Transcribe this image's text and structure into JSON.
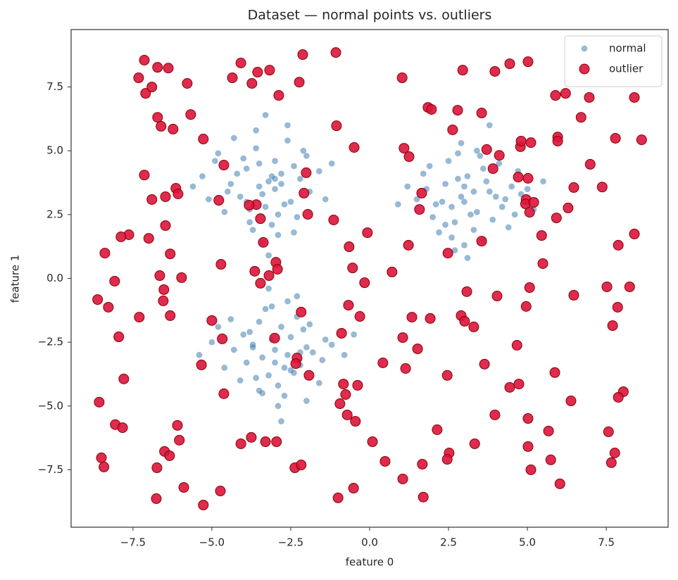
{
  "chart_data": {
    "type": "scatter",
    "title": "Dataset — normal points vs. outliers",
    "x_label": "feature 0",
    "y_label": "feature 1",
    "xlim": [
      -9.46,
      9.46
    ],
    "ylim": [
      -9.75,
      9.75
    ],
    "xticks": [
      {
        "value": -7.5,
        "label": "−7.5"
      },
      {
        "value": -5,
        "label": "−5.0"
      },
      {
        "value": -2.5,
        "label": "−2.5"
      },
      {
        "value": 0,
        "label": "0.0"
      },
      2.5,
      {
        "value": 5,
        "label": "5.0"
      },
      7.5
    ],
    "yticks": [
      {
        "value": -7.5,
        "label": "−7.5"
      },
      {
        "value": -5,
        "label": "−5.0"
      },
      {
        "value": -2.5,
        "label": "−2.5"
      },
      {
        "value": 0,
        "label": "0.0"
      },
      2.5,
      {
        "value": 5,
        "label": "5.0"
      },
      7.5
    ],
    "grid": false,
    "legend": "upper right",
    "series": [
      {
        "name": "normal",
        "color": "#4682b4",
        "x": [
          -3.5,
          -2.8,
          -4.1,
          -3.0,
          -2.5,
          -3.9,
          -3.3,
          -2.2,
          -4.4,
          -3.6,
          -2.9,
          -3.1,
          -4.8,
          -1.9,
          -3.4,
          -2.6,
          -3.8,
          -4.0,
          -2.4,
          -3.2,
          -5.1,
          -1.6,
          -3.7,
          -2.7,
          -4.3,
          -3.0,
          -2.1,
          -3.5,
          -4.6,
          -2.9,
          -3.3,
          -1.4,
          -5.3,
          -3.9,
          -2.3,
          -3.6,
          -4.2,
          -2.8,
          -3.1,
          -2.0,
          -5.6,
          -1.2,
          -3.4,
          -4.5,
          -2.6,
          -3.8,
          -3.0,
          -2.4,
          -4.9,
          -3.2,
          2.9,
          3.4,
          2.4,
          3.8,
          2.1,
          3.1,
          4.2,
          2.7,
          3.6,
          1.8,
          3.0,
          4.5,
          2.5,
          3.3,
          2.0,
          3.9,
          2.8,
          4.8,
          1.5,
          3.5,
          2.6,
          4.1,
          3.2,
          1.2,
          4.4,
          2.3,
          3.7,
          5.2,
          2.9,
          3.0,
          1.7,
          4.0,
          2.2,
          3.4,
          4.7,
          2.6,
          3.1,
          0.9,
          5.0,
          3.6,
          2.8,
          4.3,
          1.9,
          3.3,
          2.4,
          3.8,
          5.5,
          2.7,
          3.0,
          4.6,
          -3.0,
          -2.5,
          -3.4,
          -2.2,
          -3.7,
          -2.8,
          -2.0,
          -3.2,
          -4.0,
          -2.6,
          -3.5,
          -1.8,
          -2.9,
          -3.9,
          -2.3,
          -4.3,
          -1.5,
          -3.1,
          -2.7,
          -3.6,
          -2.1,
          -4.6,
          -1.2,
          -3.3,
          -2.4,
          -3.8,
          -2.9,
          -1.9,
          -4.1,
          -2.6,
          -3.0,
          -5.0,
          -0.8,
          -3.5,
          -2.2,
          -3.2,
          -4.4,
          -1.6,
          -2.8,
          -3.7,
          -2.5,
          -5.4,
          -0.5,
          -3.1,
          -2.0,
          -4.8,
          -2.7,
          -1.4,
          -3.4,
          -2.3
        ],
        "y": [
          3.6,
          4.1,
          3.2,
          4.6,
          3.0,
          4.3,
          2.8,
          3.9,
          3.7,
          5.1,
          2.5,
          4.0,
          4.9,
          3.4,
          3.3,
          5.4,
          2.2,
          4.7,
          4.4,
          3.8,
          3.1,
          4.2,
          1.9,
          2.9,
          5.5,
          3.5,
          5.0,
          4.5,
          2.6,
          1.7,
          6.4,
          3.1,
          4.0,
          3.0,
          2.4,
          5.8,
          4.1,
          3.7,
          2.1,
          4.8,
          3.6,
          4.5,
          1.4,
          3.4,
          6.0,
          2.7,
          3.9,
          1.8,
          4.6,
          0.9,
          3.2,
          2.6,
          3.7,
          3.4,
          2.9,
          4.0,
          2.8,
          2.2,
          4.3,
          3.5,
          3.0,
          3.6,
          4.6,
          1.9,
          2.4,
          2.3,
          3.9,
          3.3,
          3.1,
          4.8,
          1.6,
          4.5,
          2.5,
          3.6,
          2.0,
          3.0,
          3.8,
          2.7,
          5.3,
          1.3,
          4.1,
          3.2,
          1.8,
          5.0,
          4.2,
          2.8,
          0.8,
          2.9,
          3.5,
          1.5,
          4.9,
          3.1,
          4.4,
          3.4,
          2.1,
          6.0,
          3.8,
          1.1,
          3.6,
          2.5,
          -2.8,
          -2.3,
          -3.1,
          -3.4,
          -2.6,
          -1.9,
          -2.7,
          -3.8,
          -2.2,
          -3.0,
          -1.7,
          -2.9,
          -4.2,
          -3.3,
          -1.5,
          -2.8,
          -3.2,
          -2.4,
          -4.6,
          -3.9,
          -2.0,
          -3.5,
          -2.6,
          -1.2,
          -3.7,
          -2.1,
          -5.0,
          -1.8,
          -4.0,
          -0.9,
          -3.3,
          -2.5,
          -3.0,
          -4.4,
          -2.9,
          -0.4,
          -1.6,
          -4.1,
          -5.6,
          -2.7,
          -3.6,
          -3.0,
          -2.2,
          -1.1,
          -4.8,
          -1.9,
          -3.5,
          -2.4,
          -4.5,
          -0.7
        ]
      },
      {
        "name": "outlier",
        "color": "#dc143c",
        "edgecolor": "#8b0000",
        "x": [
          -7.14,
          -7.32,
          -7.1,
          -6.9,
          -6.72,
          -6.38,
          -5.78,
          -5.67,
          -6.72,
          -6.61,
          -6.23,
          -5.27,
          -7.14,
          -4.62,
          -6.14,
          -6.07,
          -6.47,
          -6.9,
          -4.78,
          -6.47,
          -7.63,
          -7.88,
          -7.0,
          -8.39,
          -6.32,
          -6.65,
          -5.96,
          -8.08,
          -6.52,
          -8.62,
          -6.54,
          -8.28,
          -6.32,
          -7.3,
          -7.95,
          -7.79,
          -8.57,
          -8.06,
          -7.83,
          -6.09,
          -6.03,
          -6.5,
          -6.34,
          -8.5,
          -8.42,
          -6.74,
          -5.89,
          -6.76,
          -5.27,
          -4.73,
          -4.35,
          -4.08,
          -3.73,
          -3.55,
          -3.17,
          -2.88,
          -2.12,
          -2.23,
          -1.07,
          -1.05,
          -0.49,
          -2.01,
          -2.08,
          -1.96,
          -1.14,
          -3.59,
          -3.82,
          -3.46,
          -3.37,
          -4.71,
          -3.64,
          -2.97,
          -2.92,
          -3.19,
          -3.46,
          -0.65,
          -0.54,
          -0.07,
          -0.16,
          -0.67,
          -0.31,
          -2.17,
          -5.0,
          -4.67,
          -3.01,
          -0.89,
          -5.33,
          -2.3,
          -2.34,
          -1.92,
          -4.62,
          -0.83,
          -0.38,
          -0.76,
          -0.94,
          -0.71,
          -0.45,
          -4.08,
          -3.75,
          -3.3,
          -2.95,
          -2.37,
          -2.17,
          -1.0,
          -0.51,
          0.09,
          0.49,
          1.05,
          1.67,
          1.7,
          1.03,
          1.09,
          1.25,
          1.85,
          1.96,
          2.79,
          3.55,
          2.95,
          3.97,
          4.44,
          5.02,
          2.63,
          3.71,
          4.11,
          3.91,
          4.78,
          4.8,
          5.11,
          4.71,
          5.02,
          4.96,
          4.94,
          5.2,
          5.07,
          5.45,
          1.65,
          1.58,
          1.23,
          2.48,
          3.55,
          0.71,
          5.49,
          5.89,
          6.21,
          6.96,
          6.7,
          8.39,
          5.96,
          5.96,
          7.79,
          8.62,
          6.99,
          6.47,
          7.37,
          6.29,
          5.92,
          7.88,
          8.39,
          7.52,
          8.24,
          6.47,
          5.07,
          4.04,
          3.08,
          4.96,
          7.86,
          1.34,
          1.92,
          2.9,
          3.01,
          3.3,
          7.7,
          1.05,
          1.52,
          4.67,
          0.42,
          1.14,
          2.46,
          3.64,
          5.87,
          4.73,
          4.44,
          6.38,
          8.04,
          7.88,
          3.97,
          5.02,
          2.14,
          5.67,
          7.57,
          3.33,
          5.02,
          2.52,
          2.46,
          5.74,
          7.77,
          7.66,
          5.11,
          6.03
        ],
        "y": [
          8.55,
          7.86,
          7.25,
          7.5,
          8.27,
          8.24,
          7.64,
          6.42,
          6.31,
          5.96,
          5.85,
          5.46,
          4.05,
          4.44,
          3.53,
          3.31,
          3.2,
          3.09,
          3.06,
          2.07,
          1.71,
          1.63,
          1.57,
          0.99,
          0.96,
          0.11,
          0.03,
          -0.11,
          -0.44,
          -0.83,
          -0.88,
          -1.13,
          -1.46,
          -1.52,
          -2.29,
          -3.94,
          -4.85,
          -5.73,
          -5.85,
          -5.76,
          -6.34,
          -6.78,
          -6.95,
          -7.03,
          -7.39,
          -7.42,
          -8.19,
          -8.63,
          -8.88,
          -8.33,
          7.86,
          8.44,
          7.64,
          8.08,
          8.16,
          7.17,
          8.77,
          7.69,
          8.85,
          5.98,
          5.13,
          4.14,
          3.34,
          2.51,
          2.29,
          2.89,
          2.87,
          2.34,
          1.41,
          0.55,
          0.28,
          0.63,
          0.36,
          0.11,
          -0.19,
          1.24,
          0.41,
          1.79,
          -0.17,
          -1.05,
          -1.49,
          -1.32,
          -1.65,
          -2.37,
          -2.34,
          -2.15,
          -3.39,
          -3.12,
          -3.34,
          -3.8,
          -4.52,
          -4.14,
          -4.19,
          -4.55,
          -4.91,
          -5.35,
          -5.6,
          -6.48,
          -6.23,
          -6.4,
          -6.4,
          -7.42,
          -7.31,
          -8.6,
          -8.22,
          -6.4,
          -7.17,
          -7.86,
          -7.28,
          -8.57,
          7.86,
          5.1,
          4.77,
          6.7,
          6.62,
          6.59,
          6.48,
          8.16,
          8.11,
          8.41,
          8.49,
          5.82,
          5.05,
          4.82,
          4.3,
          5.16,
          5.38,
          5.32,
          3.97,
          3.92,
          3.09,
          2.92,
          2.98,
          2.59,
          1.68,
          3.34,
          2.7,
          1.3,
          0.99,
          1.46,
          0.25,
          0.58,
          7.17,
          7.25,
          7.09,
          6.31,
          7.09,
          5.54,
          5.38,
          5.49,
          5.43,
          4.47,
          3.56,
          3.58,
          2.76,
          2.37,
          1.3,
          1.74,
          -0.33,
          -0.33,
          -0.66,
          -0.36,
          -0.69,
          -0.52,
          -1.1,
          -1.13,
          -1.52,
          -1.57,
          -1.46,
          -1.68,
          -1.9,
          -1.85,
          -2.32,
          -2.76,
          -2.62,
          -3.31,
          -3.53,
          -3.8,
          -3.36,
          -3.69,
          -4.14,
          -4.27,
          -4.8,
          -4.44,
          -4.66,
          -5.35,
          -5.49,
          -5.93,
          -5.98,
          -6.01,
          -6.48,
          -6.59,
          -6.84,
          -7.09,
          -7.11,
          -6.84,
          -7.22,
          -7.5,
          -8.05
        ]
      }
    ]
  }
}
